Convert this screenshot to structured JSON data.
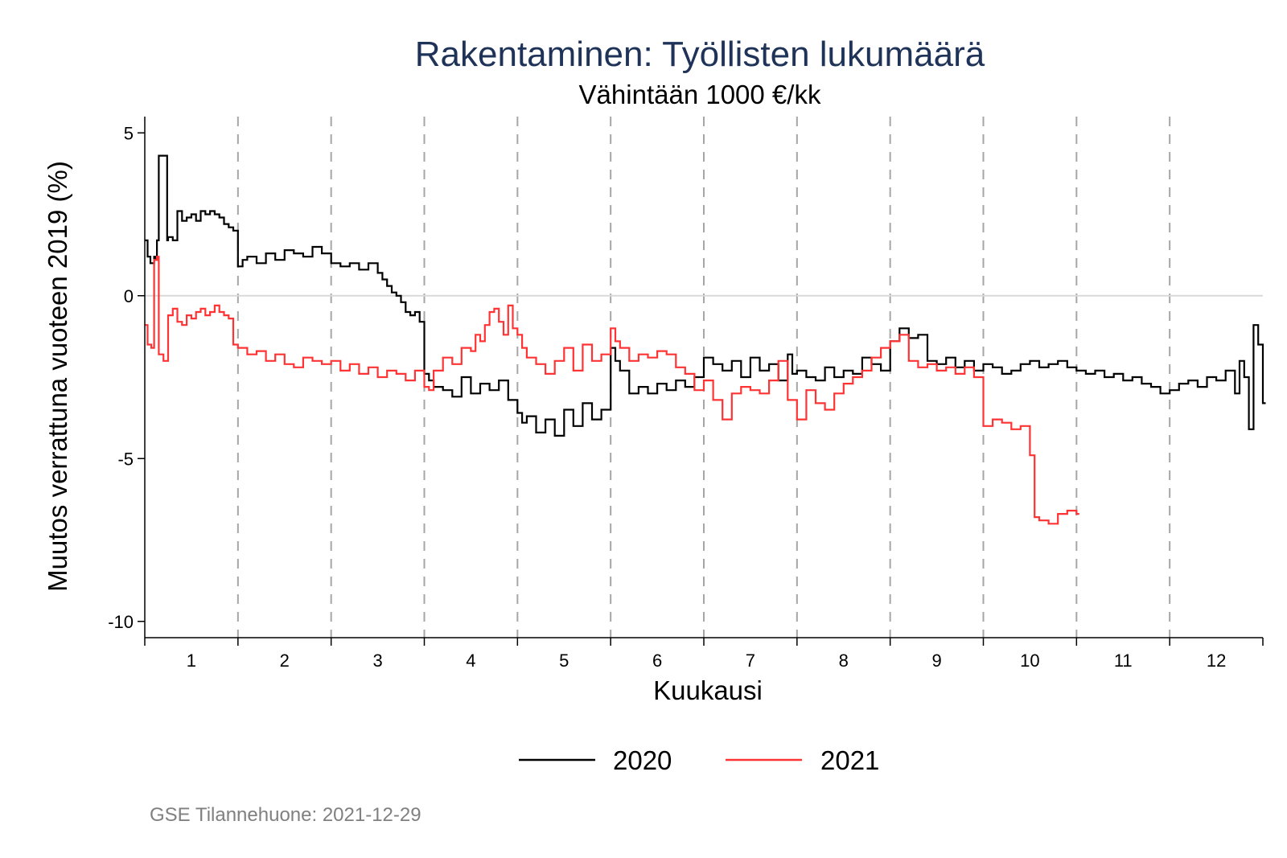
{
  "chart_data": {
    "type": "line",
    "title": "Rakentaminen: Työllisten lukumäärä",
    "subtitle": "Vähintään 1000 €/kk",
    "xlabel": "Kuukausi",
    "ylabel": "Muutos verrattuna vuoteen 2019 (%)",
    "xlim": [
      0.5,
      12.5
    ],
    "ylim": [
      -10.5,
      5.5
    ],
    "xticks": [
      1,
      2,
      3,
      4,
      5,
      6,
      7,
      8,
      9,
      10,
      11,
      12
    ],
    "xtick_labels": [
      "1",
      "2",
      "3",
      "4",
      "5",
      "6",
      "7",
      "8",
      "9",
      "10",
      "11",
      "12"
    ],
    "yticks": [
      5,
      0,
      -5,
      -10
    ],
    "ytick_labels": [
      "5",
      "0",
      "-5",
      "-10"
    ],
    "month_boundaries": [
      1.5,
      2.5,
      3.5,
      4.5,
      5.5,
      6.5,
      7.5,
      8.5,
      9.5,
      10.5,
      11.5
    ],
    "reference_line_y": 0,
    "grid": false,
    "legend_position": "bottom",
    "series": [
      {
        "name": "2020",
        "color": "#000000",
        "x": [
          0.5,
          0.53,
          0.56,
          0.6,
          0.62,
          0.63,
          0.65,
          0.74,
          0.75,
          0.8,
          0.85,
          0.9,
          0.95,
          1.0,
          1.05,
          1.1,
          1.15,
          1.2,
          1.25,
          1.3,
          1.35,
          1.4,
          1.45,
          1.5,
          1.55,
          1.6,
          1.7,
          1.8,
          1.9,
          2.0,
          2.1,
          2.2,
          2.3,
          2.4,
          2.5,
          2.6,
          2.7,
          2.8,
          2.9,
          3.0,
          3.05,
          3.1,
          3.15,
          3.2,
          3.25,
          3.3,
          3.35,
          3.4,
          3.45,
          3.5,
          3.55,
          3.6,
          3.7,
          3.8,
          3.9,
          4.0,
          4.1,
          4.2,
          4.3,
          4.4,
          4.5,
          4.55,
          4.6,
          4.7,
          4.8,
          4.9,
          5.0,
          5.1,
          5.2,
          5.3,
          5.4,
          5.5,
          5.55,
          5.6,
          5.7,
          5.8,
          5.9,
          6.0,
          6.1,
          6.2,
          6.3,
          6.4,
          6.5,
          6.6,
          6.7,
          6.8,
          6.9,
          7.0,
          7.1,
          7.2,
          7.3,
          7.4,
          7.45,
          7.5,
          7.6,
          7.7,
          7.8,
          7.9,
          8.0,
          8.1,
          8.2,
          8.3,
          8.4,
          8.5,
          8.6,
          8.7,
          8.8,
          8.9,
          9.0,
          9.1,
          9.2,
          9.3,
          9.4,
          9.5,
          9.6,
          9.7,
          9.8,
          9.9,
          10.0,
          10.1,
          10.2,
          10.3,
          10.4,
          10.5,
          10.6,
          10.7,
          10.8,
          10.9,
          11.0,
          11.1,
          11.2,
          11.3,
          11.4,
          11.5,
          11.6,
          11.7,
          11.8,
          11.9,
          12.0,
          12.1,
          12.2,
          12.25,
          12.3,
          12.35,
          12.4,
          12.45,
          12.5
        ],
        "y": [
          1.7,
          1.2,
          1.0,
          1.2,
          1.1,
          1.7,
          4.3,
          1.7,
          1.8,
          1.7,
          2.6,
          2.3,
          2.4,
          2.5,
          2.3,
          2.6,
          2.5,
          2.6,
          2.5,
          2.4,
          2.2,
          2.1,
          2.0,
          0.9,
          1.1,
          1.2,
          1.0,
          1.3,
          1.1,
          1.4,
          1.3,
          1.2,
          1.5,
          1.3,
          1.0,
          0.9,
          1.0,
          0.8,
          1.0,
          0.7,
          0.5,
          0.3,
          0.1,
          0.0,
          -0.2,
          -0.5,
          -0.6,
          -0.5,
          -0.8,
          -2.4,
          -2.6,
          -2.8,
          -2.9,
          -3.1,
          -2.5,
          -3.0,
          -2.7,
          -2.9,
          -2.6,
          -3.2,
          -3.6,
          -3.9,
          -3.7,
          -4.2,
          -3.8,
          -4.3,
          -3.5,
          -4.0,
          -3.3,
          -3.8,
          -3.5,
          -1.6,
          -2.0,
          -2.3,
          -3.0,
          -2.8,
          -3.0,
          -2.7,
          -2.9,
          -2.6,
          -2.8,
          -2.5,
          -1.9,
          -2.1,
          -2.3,
          -2.0,
          -2.5,
          -1.9,
          -2.3,
          -2.1,
          -2.6,
          -1.8,
          -2.4,
          -2.3,
          -2.5,
          -2.6,
          -2.2,
          -2.5,
          -2.3,
          -2.4,
          -1.9,
          -2.1,
          -2.3,
          -1.4,
          -1.0,
          -1.3,
          -1.2,
          -2.0,
          -2.1,
          -1.9,
          -2.2,
          -2.0,
          -2.3,
          -2.1,
          -2.2,
          -2.4,
          -2.3,
          -2.1,
          -2.0,
          -2.2,
          -2.1,
          -2.0,
          -2.2,
          -2.3,
          -2.4,
          -2.3,
          -2.5,
          -2.4,
          -2.6,
          -2.5,
          -2.7,
          -2.8,
          -3.0,
          -2.9,
          -2.7,
          -2.6,
          -2.8,
          -2.5,
          -2.6,
          -2.3,
          -3.0,
          -2.0,
          -2.5,
          -4.1,
          -0.9,
          -1.5,
          -3.3
        ]
      },
      {
        "name": "2021",
        "color": "#ff3333",
        "x": [
          0.5,
          0.53,
          0.57,
          0.6,
          0.63,
          0.65,
          0.7,
          0.75,
          0.8,
          0.85,
          0.9,
          0.95,
          1.0,
          1.05,
          1.1,
          1.15,
          1.2,
          1.25,
          1.3,
          1.35,
          1.4,
          1.45,
          1.5,
          1.6,
          1.7,
          1.8,
          1.9,
          2.0,
          2.1,
          2.2,
          2.3,
          2.4,
          2.5,
          2.6,
          2.7,
          2.8,
          2.9,
          3.0,
          3.1,
          3.2,
          3.3,
          3.4,
          3.5,
          3.55,
          3.6,
          3.7,
          3.8,
          3.9,
          4.0,
          4.05,
          4.1,
          4.15,
          4.2,
          4.25,
          4.3,
          4.35,
          4.4,
          4.45,
          4.5,
          4.55,
          4.6,
          4.7,
          4.8,
          4.9,
          5.0,
          5.1,
          5.2,
          5.3,
          5.4,
          5.5,
          5.55,
          5.6,
          5.7,
          5.8,
          5.9,
          6.0,
          6.1,
          6.2,
          6.3,
          6.4,
          6.5,
          6.6,
          6.7,
          6.8,
          6.9,
          7.0,
          7.1,
          7.2,
          7.3,
          7.4,
          7.5,
          7.6,
          7.7,
          7.8,
          7.9,
          8.0,
          8.1,
          8.2,
          8.3,
          8.4,
          8.5,
          8.6,
          8.7,
          8.8,
          8.9,
          9.0,
          9.1,
          9.2,
          9.3,
          9.4,
          9.5,
          9.6,
          9.7,
          9.8,
          9.9,
          10.0,
          10.05,
          10.1,
          10.2,
          10.3,
          10.4,
          10.5
        ],
        "y": [
          -0.9,
          -1.5,
          -1.6,
          1.1,
          1.2,
          -1.8,
          -2.0,
          -0.6,
          -0.4,
          -0.8,
          -0.9,
          -0.6,
          -0.7,
          -0.5,
          -0.4,
          -0.6,
          -0.5,
          -0.3,
          -0.5,
          -0.6,
          -0.7,
          -1.5,
          -1.6,
          -1.8,
          -1.7,
          -2.0,
          -1.8,
          -2.1,
          -2.2,
          -1.9,
          -2.0,
          -2.1,
          -2.0,
          -2.3,
          -2.1,
          -2.4,
          -2.2,
          -2.5,
          -2.3,
          -2.4,
          -2.6,
          -2.3,
          -2.8,
          -2.9,
          -2.3,
          -1.9,
          -2.1,
          -1.6,
          -1.7,
          -1.2,
          -1.4,
          -0.9,
          -0.5,
          -0.4,
          -0.8,
          -1.2,
          -0.3,
          -1.0,
          -1.2,
          -1.6,
          -1.9,
          -2.1,
          -2.4,
          -2.0,
          -1.6,
          -2.3,
          -1.5,
          -2.0,
          -1.8,
          -1.0,
          -1.4,
          -1.6,
          -2.0,
          -1.8,
          -1.9,
          -1.7,
          -1.8,
          -2.2,
          -2.4,
          -2.9,
          -2.6,
          -3.2,
          -3.8,
          -3.0,
          -2.8,
          -2.9,
          -3.0,
          -2.6,
          -2.0,
          -3.2,
          -3.8,
          -2.9,
          -3.3,
          -3.5,
          -3.0,
          -2.7,
          -2.5,
          -2.3,
          -1.9,
          -1.6,
          -1.4,
          -1.2,
          -2.0,
          -2.2,
          -2.1,
          -2.3,
          -2.2,
          -2.4,
          -2.2,
          -2.5,
          -4.0,
          -3.8,
          -3.9,
          -4.1,
          -4.0,
          -4.9,
          -6.8,
          -6.9,
          -7.0,
          -6.7,
          -6.6,
          -6.7
        ]
      }
    ],
    "source_note": "GSE Tilannehuone: 2021-12-29"
  }
}
